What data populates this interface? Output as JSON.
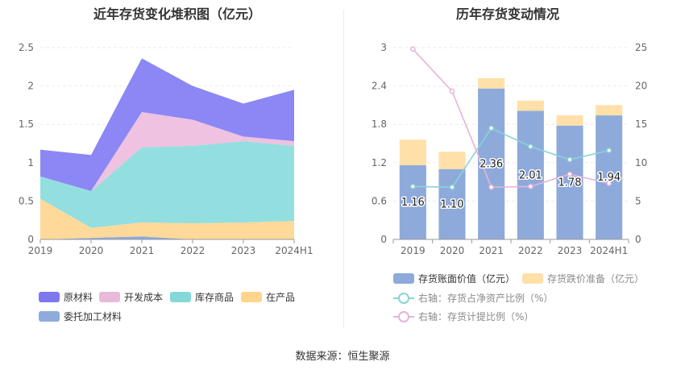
{
  "source": "数据来源：恒生聚源",
  "chart_data": [
    {
      "type": "area",
      "stacked": true,
      "title": "近年存货变化堆积图（亿元）",
      "categories": [
        "2019",
        "2020",
        "2021",
        "2022",
        "2023",
        "2024H1"
      ],
      "y_ticks": [
        "0",
        "0.5",
        "1",
        "1.5",
        "2",
        "2.5"
      ],
      "ylim": [
        0,
        2.5
      ],
      "series": [
        {
          "name": "委托加工材料",
          "color": "#8faadc",
          "values": [
            0.0,
            0.02,
            0.04,
            0.0,
            0.0,
            0.0
          ]
        },
        {
          "name": "在产品",
          "color": "#ffd99a",
          "values": [
            0.53,
            0.13,
            0.18,
            0.21,
            0.22,
            0.24
          ]
        },
        {
          "name": "库存商品",
          "color": "#93dfe0",
          "values": [
            0.29,
            0.48,
            0.98,
            1.01,
            1.06,
            0.98
          ]
        },
        {
          "name": "开发成本",
          "color": "#eec2e0",
          "values": [
            0.0,
            0.0,
            0.46,
            0.34,
            0.06,
            0.06
          ]
        },
        {
          "name": "原材料",
          "color": "#8c87f5",
          "values": [
            0.35,
            0.47,
            0.7,
            0.44,
            0.43,
            0.67
          ]
        }
      ],
      "legend_order": [
        "原材料",
        "开发成本",
        "库存商品",
        "在产品",
        "委托加工材料"
      ]
    },
    {
      "type": "bar",
      "stacked": true,
      "title": "历年存货变动情况",
      "categories": [
        "2019",
        "2020",
        "2021",
        "2022",
        "2023",
        "2024H1"
      ],
      "y_left_ticks": [
        "0",
        "0.6",
        "1.2",
        "1.8",
        "2.4",
        "3"
      ],
      "ylim_left": [
        0,
        3
      ],
      "y_right_ticks": [
        "0",
        "5",
        "10",
        "15",
        "20",
        "25"
      ],
      "ylim_right": [
        0,
        25
      ],
      "bars": [
        {
          "name": "存货账面价值（亿元）",
          "color": "#8eaadb",
          "values": [
            1.16,
            1.1,
            2.36,
            2.01,
            1.78,
            1.94
          ],
          "labels": [
            "1.16",
            "1.10",
            "2.36",
            "2.01",
            "1.78",
            "1.94"
          ]
        },
        {
          "name": "存货跌价准备（亿元）",
          "color": "#ffe0a8",
          "values": [
            0.4,
            0.27,
            0.16,
            0.16,
            0.16,
            0.16
          ]
        }
      ],
      "lines": [
        {
          "name": "右轴：存货占净资产比例（%）",
          "color": "#8ad3d6",
          "values": [
            6.9,
            6.8,
            14.5,
            12.1,
            10.4,
            11.6
          ]
        },
        {
          "name": "右轴：存货计提比例（%）",
          "color": "#e6b3d9",
          "values": [
            24.8,
            19.3,
            6.8,
            6.9,
            8.5,
            7.3
          ]
        }
      ]
    }
  ]
}
